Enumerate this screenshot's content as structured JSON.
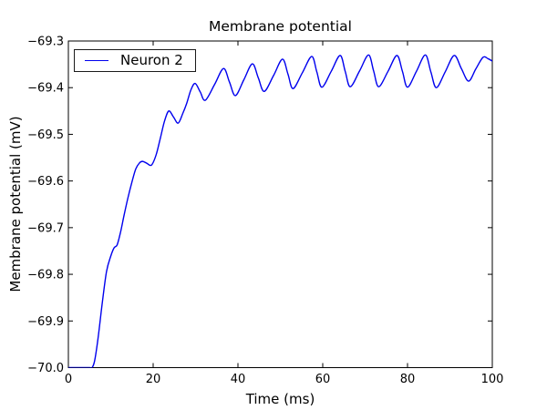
{
  "figure": {
    "background": "#ffffff",
    "axes_edge_color": "#000000",
    "text_color": "#000000"
  },
  "chart_data": {
    "type": "line",
    "title": "Membrane potential",
    "xlabel": "Time (ms)",
    "ylabel": "Membrane potential (mV)",
    "xlim": [
      0,
      100
    ],
    "ylim": [
      -70.0,
      -69.3
    ],
    "xticks": [
      0,
      20,
      40,
      60,
      80,
      100
    ],
    "yticks": [
      -70.0,
      -69.9,
      -69.8,
      -69.7,
      -69.6,
      -69.5,
      -69.4,
      -69.3
    ],
    "grid": false,
    "legend_position": "upper left",
    "series": [
      {
        "name": "Neuron 2",
        "color": "#0000ee",
        "points": [
          [
            0,
            -70.0
          ],
          [
            2.5,
            -70.0
          ],
          [
            5.0,
            -70.0
          ],
          [
            5.6,
            -70.0
          ],
          [
            6.2,
            -69.985
          ],
          [
            7.0,
            -69.937
          ],
          [
            8.0,
            -69.861
          ],
          [
            9.0,
            -69.794
          ],
          [
            10.0,
            -69.761
          ],
          [
            10.8,
            -69.743
          ],
          [
            11.5,
            -69.737
          ],
          [
            12.3,
            -69.71
          ],
          [
            13.1,
            -69.675
          ],
          [
            14.0,
            -69.638
          ],
          [
            15.0,
            -69.602
          ],
          [
            15.9,
            -69.574
          ],
          [
            16.8,
            -69.561
          ],
          [
            17.5,
            -69.558
          ],
          [
            18.5,
            -69.562
          ],
          [
            19.6,
            -69.566
          ],
          [
            20.7,
            -69.544
          ],
          [
            21.7,
            -69.508
          ],
          [
            22.7,
            -69.471
          ],
          [
            23.7,
            -69.45
          ],
          [
            24.8,
            -69.463
          ],
          [
            25.9,
            -69.476
          ],
          [
            27.0,
            -69.455
          ],
          [
            27.9,
            -69.434
          ],
          [
            28.9,
            -69.405
          ],
          [
            29.9,
            -69.391
          ],
          [
            31.1,
            -69.409
          ],
          [
            32.3,
            -69.427
          ],
          [
            34.5,
            -69.393
          ],
          [
            36.6,
            -69.359
          ],
          [
            38.0,
            -69.388
          ],
          [
            39.4,
            -69.417
          ],
          [
            41.4,
            -69.383
          ],
          [
            43.4,
            -69.349
          ],
          [
            44.8,
            -69.379
          ],
          [
            46.2,
            -69.408
          ],
          [
            48.4,
            -69.374
          ],
          [
            50.5,
            -69.339
          ],
          [
            51.8,
            -69.371
          ],
          [
            53.0,
            -69.402
          ],
          [
            55.2,
            -69.368
          ],
          [
            57.4,
            -69.333
          ],
          [
            58.6,
            -69.366
          ],
          [
            59.8,
            -69.399
          ],
          [
            62.0,
            -69.365
          ],
          [
            64.1,
            -69.331
          ],
          [
            65.3,
            -69.365
          ],
          [
            66.5,
            -69.398
          ],
          [
            68.7,
            -69.364
          ],
          [
            70.8,
            -69.33
          ],
          [
            72.0,
            -69.364
          ],
          [
            73.2,
            -69.398
          ],
          [
            75.4,
            -69.365
          ],
          [
            77.5,
            -69.331
          ],
          [
            78.8,
            -69.365
          ],
          [
            80.0,
            -69.399
          ],
          [
            82.1,
            -69.365
          ],
          [
            84.2,
            -69.33
          ],
          [
            85.5,
            -69.366
          ],
          [
            86.8,
            -69.4
          ],
          [
            88.9,
            -69.366
          ],
          [
            91.0,
            -69.331
          ],
          [
            92.7,
            -69.359
          ],
          [
            94.4,
            -69.386
          ],
          [
            96.1,
            -69.36
          ],
          [
            97.8,
            -69.335
          ],
          [
            99.0,
            -69.338
          ],
          [
            100,
            -69.343
          ]
        ]
      }
    ]
  }
}
